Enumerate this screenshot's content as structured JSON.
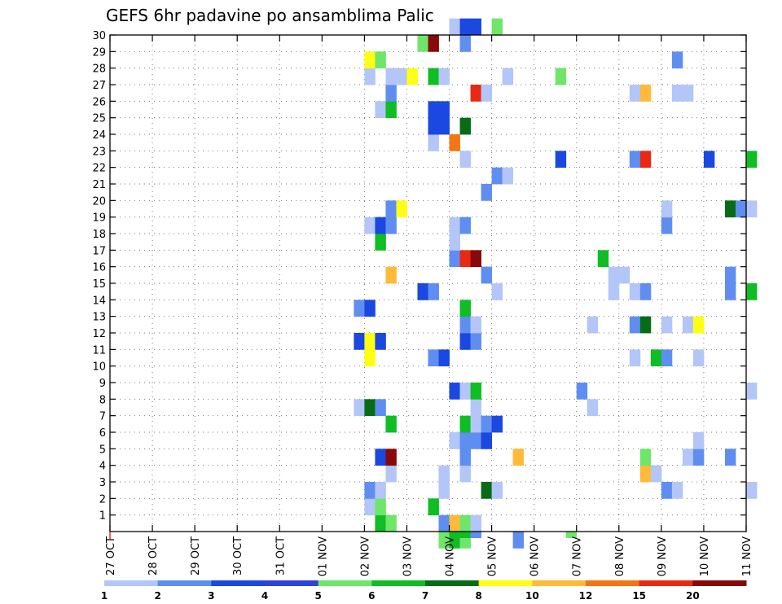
{
  "chart_data": {
    "type": "heatmap",
    "title": "GEFS 6hr padavine po ansamblima Palic",
    "xlabel": "",
    "ylabel": "",
    "x_ticks": [
      "27 OCT",
      "28 OCT",
      "29 OCT",
      "30 OCT",
      "31 OCT",
      "01 NOV",
      "02 NOV",
      "03 NOV",
      "04 NOV",
      "05 NOV",
      "06 NOV",
      "07 NOV",
      "08 NOV",
      "09 NOV",
      "10 NOV",
      "11 NOV"
    ],
    "y_ticks": [
      "1",
      "2",
      "3",
      "4",
      "5",
      "6",
      "7",
      "8",
      "9",
      "10",
      "11",
      "12",
      "13",
      "14",
      "15",
      "16",
      "17",
      "18",
      "19",
      "20",
      "21",
      "22",
      "23",
      "24",
      "25",
      "26",
      "27",
      "28",
      "29",
      "30"
    ],
    "x_unit": "6-hour step from 27 OCT 00Z",
    "y_range": [
      0,
      30
    ],
    "grid": true,
    "legend_position": "bottom",
    "legend": {
      "labels": [
        "1",
        "2",
        "3",
        "4",
        "5",
        "6",
        "7",
        "8",
        "10",
        "12",
        "15",
        "20"
      ],
      "colors": [
        "#b3c6f7",
        "#5f8ef0",
        "#1a48e0",
        "#2f43d9",
        "#6fe66a",
        "#0fbd24",
        "#086b16",
        "#ffff14",
        "#ffba3a",
        "#f27614",
        "#e82a12",
        "#880909"
      ]
    },
    "levels": [
      "#b3c6f7",
      "#5f8ef0",
      "#1a48e0",
      "#6fe66a",
      "#0fbd24",
      "#086b16",
      "#ffff14",
      "#ffba3a",
      "#f27614",
      "#e82a12",
      "#880909"
    ],
    "cells": [
      [
        31,
        0,
        3
      ],
      [
        32,
        0,
        4
      ],
      [
        33,
        0,
        3
      ],
      [
        38,
        0,
        1
      ],
      [
        25,
        1,
        4
      ],
      [
        26,
        1,
        3
      ],
      [
        31,
        1,
        1
      ],
      [
        32,
        1,
        7
      ],
      [
        33,
        1,
        3
      ],
      [
        34,
        1,
        0
      ],
      [
        24,
        2,
        0
      ],
      [
        25,
        2,
        3
      ],
      [
        30,
        2,
        4
      ],
      [
        24,
        3,
        1
      ],
      [
        25,
        3,
        0
      ],
      [
        31,
        3,
        0
      ],
      [
        35,
        3,
        5
      ],
      [
        36,
        3,
        0
      ],
      [
        52,
        3,
        1
      ],
      [
        53,
        3,
        0
      ],
      [
        60,
        3,
        0
      ],
      [
        26,
        4,
        0
      ],
      [
        31,
        4,
        0
      ],
      [
        33,
        4,
        0
      ],
      [
        50,
        4,
        7
      ],
      [
        51,
        4,
        0
      ],
      [
        25,
        5,
        2
      ],
      [
        26,
        5,
        10
      ],
      [
        33,
        5,
        1
      ],
      [
        38,
        5,
        7
      ],
      [
        50,
        5,
        3
      ],
      [
        54,
        5,
        0
      ],
      [
        55,
        5,
        1
      ],
      [
        58,
        5,
        1
      ],
      [
        32,
        6,
        0
      ],
      [
        33,
        6,
        1
      ],
      [
        34,
        6,
        1
      ],
      [
        35,
        6,
        2
      ],
      [
        55,
        6,
        0
      ],
      [
        26,
        7,
        4
      ],
      [
        33,
        7,
        4
      ],
      [
        34,
        7,
        0
      ],
      [
        35,
        7,
        1
      ],
      [
        36,
        7,
        2
      ],
      [
        23,
        8,
        0
      ],
      [
        24,
        8,
        5
      ],
      [
        25,
        8,
        1
      ],
      [
        34,
        8,
        0
      ],
      [
        45,
        8,
        0
      ],
      [
        32,
        9,
        2
      ],
      [
        33,
        9,
        0
      ],
      [
        34,
        9,
        4
      ],
      [
        44,
        9,
        1
      ],
      [
        60,
        9,
        0
      ],
      [
        24,
        11,
        6
      ],
      [
        30,
        11,
        1
      ],
      [
        31,
        11,
        2
      ],
      [
        49,
        11,
        0
      ],
      [
        51,
        11,
        4
      ],
      [
        52,
        11,
        1
      ],
      [
        55,
        11,
        0
      ],
      [
        23,
        12,
        2
      ],
      [
        24,
        12,
        6
      ],
      [
        25,
        12,
        2
      ],
      [
        33,
        12,
        2
      ],
      [
        34,
        12,
        1
      ],
      [
        33,
        13,
        1
      ],
      [
        34,
        13,
        0
      ],
      [
        45,
        13,
        0
      ],
      [
        49,
        13,
        1
      ],
      [
        50,
        13,
        5
      ],
      [
        52,
        13,
        0
      ],
      [
        54,
        13,
        0
      ],
      [
        55,
        13,
        6
      ],
      [
        23,
        14,
        1
      ],
      [
        24,
        14,
        2
      ],
      [
        33,
        14,
        4
      ],
      [
        29,
        15,
        2
      ],
      [
        30,
        15,
        1
      ],
      [
        36,
        15,
        0
      ],
      [
        47,
        15,
        0
      ],
      [
        49,
        15,
        0
      ],
      [
        50,
        15,
        1
      ],
      [
        58,
        15,
        1
      ],
      [
        60,
        15,
        4
      ],
      [
        26,
        16,
        7
      ],
      [
        35,
        16,
        1
      ],
      [
        47,
        16,
        0
      ],
      [
        48,
        16,
        0
      ],
      [
        58,
        16,
        1
      ],
      [
        32,
        17,
        1
      ],
      [
        33,
        17,
        9
      ],
      [
        34,
        17,
        10
      ],
      [
        46,
        17,
        4
      ],
      [
        25,
        18,
        4
      ],
      [
        32,
        18,
        0
      ],
      [
        24,
        19,
        0
      ],
      [
        25,
        19,
        2
      ],
      [
        26,
        19,
        1
      ],
      [
        32,
        19,
        0
      ],
      [
        33,
        19,
        1
      ],
      [
        52,
        19,
        1
      ],
      [
        26,
        20,
        1
      ],
      [
        27,
        20,
        6
      ],
      [
        52,
        20,
        0
      ],
      [
        58,
        20,
        5
      ],
      [
        59,
        20,
        1
      ],
      [
        60,
        20,
        0
      ],
      [
        35,
        21,
        1
      ],
      [
        36,
        22,
        1
      ],
      [
        37,
        22,
        0
      ],
      [
        33,
        23,
        0
      ],
      [
        42,
        23,
        2
      ],
      [
        49,
        23,
        1
      ],
      [
        50,
        23,
        9
      ],
      [
        56,
        23,
        2
      ],
      [
        60,
        23,
        4
      ],
      [
        30,
        24,
        0
      ],
      [
        32,
        24,
        8
      ],
      [
        30,
        25,
        2
      ],
      [
        31,
        25,
        2
      ],
      [
        33,
        25,
        5
      ],
      [
        25,
        26,
        0
      ],
      [
        26,
        26,
        4
      ],
      [
        30,
        26,
        2
      ],
      [
        31,
        26,
        2
      ],
      [
        26,
        27,
        1
      ],
      [
        34,
        27,
        9
      ],
      [
        35,
        27,
        0
      ],
      [
        49,
        27,
        0
      ],
      [
        50,
        27,
        7
      ],
      [
        53,
        27,
        0
      ],
      [
        54,
        27,
        0
      ],
      [
        24,
        28,
        0
      ],
      [
        26,
        28,
        0
      ],
      [
        27,
        28,
        0
      ],
      [
        28,
        28,
        6
      ],
      [
        30,
        28,
        4
      ],
      [
        31,
        28,
        0
      ],
      [
        37,
        28,
        0
      ],
      [
        42,
        28,
        3
      ],
      [
        24,
        29,
        6
      ],
      [
        25,
        29,
        3
      ],
      [
        53,
        29,
        1
      ],
      [
        29,
        30,
        3
      ],
      [
        30,
        30,
        10
      ],
      [
        33,
        30,
        1
      ],
      [
        32,
        31,
        0
      ],
      [
        33,
        31,
        2
      ],
      [
        34,
        31,
        2
      ],
      [
        36,
        31,
        3
      ]
    ],
    "partial_bottom": [
      [
        33,
        4
      ],
      [
        34,
        1
      ],
      [
        43,
        3
      ]
    ]
  }
}
